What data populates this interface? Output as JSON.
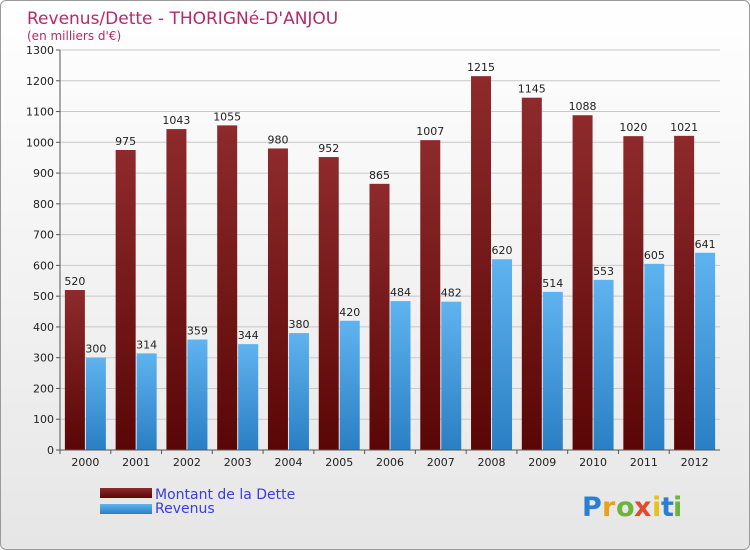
{
  "chart_data": {
    "type": "bar",
    "title": "Revenus/Dette - THORIGNé-D'ANJOU",
    "subtitle": "(en milliers d'€)",
    "categories": [
      "2000",
      "2001",
      "2002",
      "2003",
      "2004",
      "2005",
      "2006",
      "2007",
      "2008",
      "2009",
      "2010",
      "2011",
      "2012"
    ],
    "series": [
      {
        "name": "Montant de la Dette",
        "color": "#7a1414",
        "values": [
          520,
          975,
          1043,
          1055,
          980,
          952,
          865,
          1007,
          1215,
          1145,
          1088,
          1020,
          1021
        ]
      },
      {
        "name": "Revenus",
        "color": "#4aa3e6",
        "values": [
          300,
          314,
          359,
          344,
          380,
          420,
          484,
          482,
          620,
          514,
          553,
          605,
          641
        ]
      }
    ],
    "ylim": [
      0,
      1300
    ],
    "yticks": [
      0,
      100,
      200,
      300,
      400,
      500,
      600,
      700,
      800,
      900,
      1000,
      1100,
      1200,
      1300
    ],
    "grid": true,
    "legend": "bottom-left",
    "xlabel": "",
    "ylabel": ""
  },
  "branding": {
    "logo_letters": [
      "P",
      "r",
      "o",
      "x",
      "i",
      "t",
      "i"
    ],
    "logo_colors": [
      "#2a7fd4",
      "#e8a21a",
      "#6cb43a",
      "#e24b2c",
      "#e8c21a",
      "#2a7fd4",
      "#6cb43a"
    ]
  }
}
